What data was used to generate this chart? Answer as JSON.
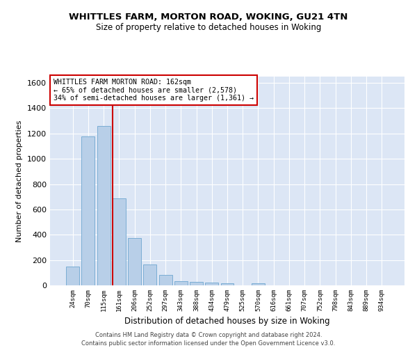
{
  "title1": "WHITTLES FARM, MORTON ROAD, WOKING, GU21 4TN",
  "title2": "Size of property relative to detached houses in Woking",
  "xlabel": "Distribution of detached houses by size in Woking",
  "ylabel": "Number of detached properties",
  "categories": [
    "24sqm",
    "70sqm",
    "115sqm",
    "161sqm",
    "206sqm",
    "252sqm",
    "297sqm",
    "343sqm",
    "388sqm",
    "434sqm",
    "479sqm",
    "525sqm",
    "570sqm",
    "616sqm",
    "661sqm",
    "707sqm",
    "752sqm",
    "798sqm",
    "843sqm",
    "889sqm",
    "934sqm"
  ],
  "values": [
    150,
    1175,
    1260,
    690,
    375,
    165,
    85,
    35,
    25,
    20,
    15,
    0,
    15,
    0,
    0,
    0,
    0,
    0,
    0,
    0,
    0
  ],
  "bar_color": "#b8cfe8",
  "bar_edge_color": "#7aadd4",
  "annotation_text": "WHITTLES FARM MORTON ROAD: 162sqm\n← 65% of detached houses are smaller (2,578)\n34% of semi-detached houses are larger (1,361) →",
  "annotation_box_color": "#ffffff",
  "annotation_box_edge_color": "#cc0000",
  "red_line_index": 3.5,
  "ylim": [
    0,
    1650
  ],
  "yticks": [
    0,
    200,
    400,
    600,
    800,
    1000,
    1200,
    1400,
    1600
  ],
  "bg_color": "#dce6f5",
  "grid_color": "#ffffff",
  "fig_bg_color": "#ffffff",
  "footer1": "Contains HM Land Registry data © Crown copyright and database right 2024.",
  "footer2": "Contains public sector information licensed under the Open Government Licence v3.0."
}
